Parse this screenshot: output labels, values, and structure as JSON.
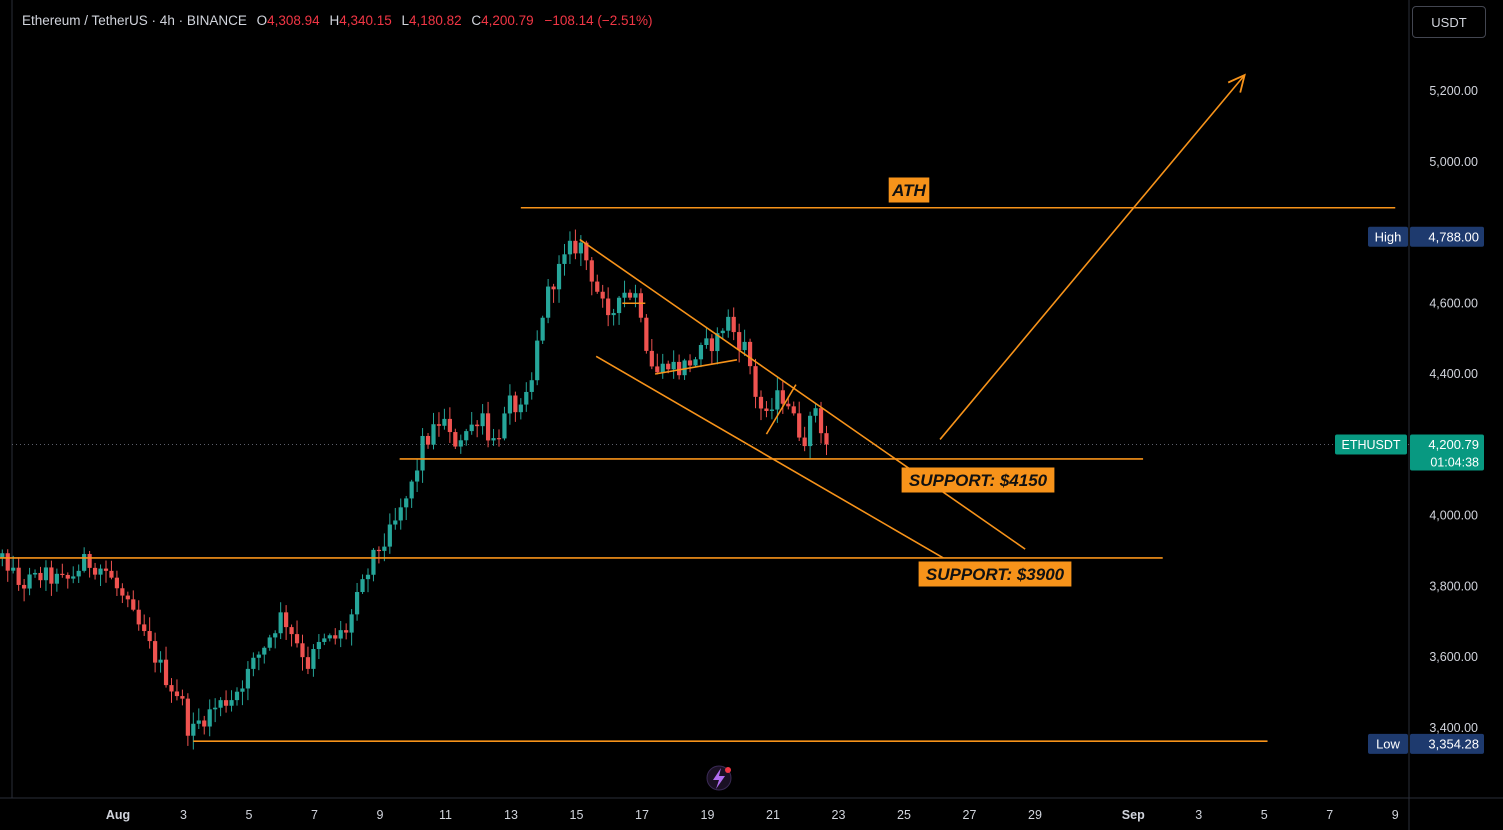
{
  "header": {
    "symbol": "Ethereum / TetherUS · 4h · BINANCE",
    "open_label": "O",
    "open": "4,308.94",
    "high_label": "H",
    "high": "4,340.15",
    "low_label": "L",
    "low": "4,180.82",
    "close_label": "C",
    "close": "4,200.79",
    "change": "−108.14 (−2.51%)"
  },
  "currency_button": "USDT",
  "colors": {
    "background": "#000000",
    "up": "#26a69a",
    "down": "#ef5350",
    "drawing": "#f7931a",
    "accent_blue": "#1e3a6e",
    "accent_teal": "#089981"
  },
  "chart_data": {
    "type": "candlestick",
    "interval": "4h",
    "ylim": [
      3280,
      5400
    ],
    "y_ticks": [
      {
        "v": 5200,
        "label": "5,200.00"
      },
      {
        "v": 5000,
        "label": "5,000.00"
      },
      {
        "v": 4600,
        "label": "4,600.00"
      },
      {
        "v": 4400,
        "label": "4,400.00"
      },
      {
        "v": 4000,
        "label": "4,000.00"
      },
      {
        "v": 3800,
        "label": "3,800.00"
      },
      {
        "v": 3600,
        "label": "3,600.00"
      },
      {
        "v": 3400,
        "label": "3,400.00"
      }
    ],
    "x_ticks": [
      {
        "d": -4,
        "label": "29"
      },
      {
        "d": 0,
        "label": "Aug",
        "bold": true
      },
      {
        "d": 2,
        "label": "3"
      },
      {
        "d": 4,
        "label": "5"
      },
      {
        "d": 6,
        "label": "7"
      },
      {
        "d": 8,
        "label": "9"
      },
      {
        "d": 10,
        "label": "11"
      },
      {
        "d": 12,
        "label": "13"
      },
      {
        "d": 14,
        "label": "15"
      },
      {
        "d": 16,
        "label": "17"
      },
      {
        "d": 18,
        "label": "19"
      },
      {
        "d": 20,
        "label": "21"
      },
      {
        "d": 22,
        "label": "23"
      },
      {
        "d": 24,
        "label": "25"
      },
      {
        "d": 26,
        "label": "27"
      },
      {
        "d": 28,
        "label": "29"
      },
      {
        "d": 31,
        "label": "Sep",
        "bold": true
      },
      {
        "d": 33,
        "label": "3"
      },
      {
        "d": 35,
        "label": "5"
      },
      {
        "d": 37,
        "label": "7"
      },
      {
        "d": 39,
        "label": "9"
      }
    ],
    "path": [
      [
        -4.2,
        3820
      ],
      [
        -3.5,
        3880
      ],
      [
        -3.0,
        3800
      ],
      [
        -2.3,
        3830
      ],
      [
        -1.6,
        3810
      ],
      [
        -1.0,
        3870
      ],
      [
        -0.4,
        3850
      ],
      [
        0.1,
        3770
      ],
      [
        0.6,
        3690
      ],
      [
        1.2,
        3590
      ],
      [
        1.6,
        3520
      ],
      [
        1.9,
        3490
      ],
      [
        2.2,
        3380
      ],
      [
        2.5,
        3420
      ],
      [
        3.0,
        3460
      ],
      [
        3.5,
        3490
      ],
      [
        4.0,
        3560
      ],
      [
        4.5,
        3640
      ],
      [
        5.0,
        3720
      ],
      [
        5.4,
        3660
      ],
      [
        5.8,
        3580
      ],
      [
        6.2,
        3640
      ],
      [
        6.6,
        3650
      ],
      [
        7.0,
        3680
      ],
      [
        7.3,
        3760
      ],
      [
        7.6,
        3830
      ],
      [
        7.9,
        3900
      ],
      [
        8.2,
        3930
      ],
      [
        8.6,
        4000
      ],
      [
        9.0,
        4090
      ],
      [
        9.3,
        4200
      ],
      [
        9.6,
        4230
      ],
      [
        9.9,
        4280
      ],
      [
        10.2,
        4200
      ],
      [
        10.5,
        4230
      ],
      [
        10.8,
        4250
      ],
      [
        11.1,
        4300
      ],
      [
        11.4,
        4200
      ],
      [
        11.7,
        4250
      ],
      [
        12.0,
        4320
      ],
      [
        12.3,
        4290
      ],
      [
        12.6,
        4350
      ],
      [
        12.9,
        4550
      ],
      [
        13.2,
        4650
      ],
      [
        13.5,
        4700
      ],
      [
        13.8,
        4750
      ],
      [
        14.1,
        4770
      ],
      [
        14.4,
        4700
      ],
      [
        14.7,
        4620
      ],
      [
        15.0,
        4530
      ],
      [
        15.3,
        4640
      ],
      [
        15.6,
        4630
      ],
      [
        15.9,
        4620
      ],
      [
        16.2,
        4450
      ],
      [
        16.5,
        4400
      ],
      [
        16.8,
        4440
      ],
      [
        17.1,
        4410
      ],
      [
        17.4,
        4430
      ],
      [
        17.7,
        4450
      ],
      [
        18.0,
        4480
      ],
      [
        18.3,
        4500
      ],
      [
        18.6,
        4560
      ],
      [
        18.9,
        4500
      ],
      [
        19.2,
        4470
      ],
      [
        19.5,
        4330
      ],
      [
        19.8,
        4270
      ],
      [
        20.1,
        4330
      ],
      [
        20.4,
        4340
      ],
      [
        20.7,
        4250
      ],
      [
        21.0,
        4220
      ],
      [
        21.3,
        4310
      ],
      [
        21.6,
        4200
      ]
    ],
    "series": [
      {
        "name": "ETHUSDT",
        "last": "4,200.79",
        "countdown": "01:04:38",
        "last_value": 4200.79
      }
    ],
    "markers": {
      "high": {
        "label": "High",
        "value_label": "4,788.00",
        "v": 4788
      },
      "low": {
        "label": "Low",
        "value_label": "3,354.28",
        "v": 3354.28
      }
    },
    "annotations": [
      {
        "type": "hline",
        "v": 4870,
        "d0": 12.3,
        "d1": 39,
        "label": "ATH"
      },
      {
        "type": "hline",
        "v": 4160,
        "d0": 8.6,
        "d1": 31.3,
        "label": "SUPPORT: $4150"
      },
      {
        "type": "hline",
        "v": 3880,
        "d0": -5.2,
        "d1": 31.9,
        "label": "SUPPORT: $3900"
      },
      {
        "type": "hline",
        "v": 3362,
        "d0": 2.3,
        "d1": 35.1,
        "label": ""
      },
      {
        "type": "trendline",
        "from": [
          14.1,
          4780
        ],
        "to": [
          27.7,
          3905
        ],
        "label": ""
      },
      {
        "type": "trendline",
        "from": [
          14.6,
          4450
        ],
        "to": [
          25.2,
          3880
        ],
        "label": ""
      },
      {
        "type": "trendline",
        "from": [
          25.1,
          4215
        ],
        "to": [
          34.4,
          5245
        ],
        "arrow": true,
        "label": ""
      },
      {
        "type": "trendline",
        "from": [
          16.4,
          4400
        ],
        "to": [
          18.9,
          4440
        ],
        "label": ""
      },
      {
        "type": "trendline",
        "from": [
          19.8,
          4230
        ],
        "to": [
          20.7,
          4370
        ],
        "label": ""
      },
      {
        "type": "trendline",
        "from": [
          15.4,
          4600
        ],
        "to": [
          16.1,
          4600
        ],
        "label": ""
      }
    ]
  }
}
